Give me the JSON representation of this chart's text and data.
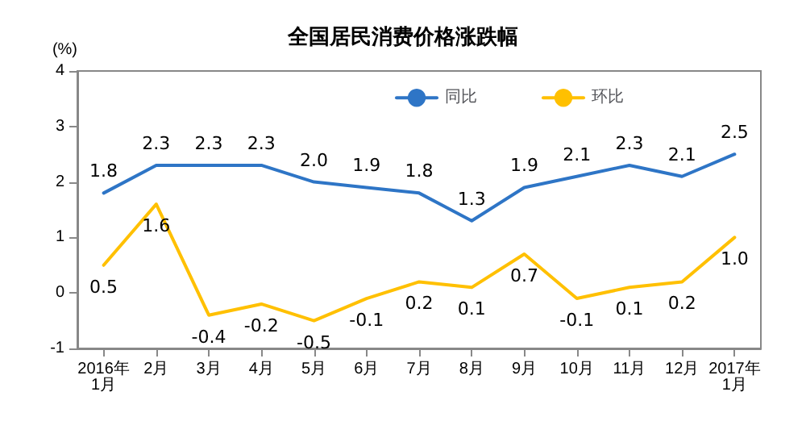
{
  "chart_data": {
    "type": "line",
    "title": "全国居民消费价格涨跌幅",
    "ylabel": "(%)",
    "categories": [
      "2016年\n1月",
      "2月",
      "3月",
      "4月",
      "5月",
      "6月",
      "7月",
      "8月",
      "9月",
      "10月",
      "11月",
      "12月",
      "2017年\n1月"
    ],
    "series": [
      {
        "name": "同比",
        "color": "#2e75c6",
        "values": [
          1.8,
          2.3,
          2.3,
          2.3,
          2.0,
          1.9,
          1.8,
          1.3,
          1.9,
          2.1,
          2.3,
          2.1,
          2.5
        ],
        "value_labels": [
          "1.8",
          "2.3",
          "2.3",
          "2.3",
          "2.0",
          "1.9",
          "1.8",
          "1.3",
          "1.9",
          "2.1",
          "2.3",
          "2.1",
          "2.5"
        ]
      },
      {
        "name": "环比",
        "color": "#ffc000",
        "values": [
          0.5,
          1.6,
          -0.4,
          -0.2,
          -0.5,
          -0.1,
          0.2,
          0.1,
          0.7,
          -0.1,
          0.1,
          0.2,
          1.0
        ],
        "value_labels": [
          "0.5",
          "1.6",
          "-0.4",
          "-0.2",
          "-0.5",
          "-0.1",
          "0.2",
          "0.1",
          "0.7",
          "-0.1",
          "0.1",
          "0.2",
          "1.0"
        ]
      }
    ],
    "ylim": [
      -1,
      4
    ],
    "yticks": [
      -1,
      0,
      1,
      2,
      3,
      4
    ],
    "grid": false,
    "legend": "top right",
    "marker": "none",
    "line_style": "solid"
  }
}
